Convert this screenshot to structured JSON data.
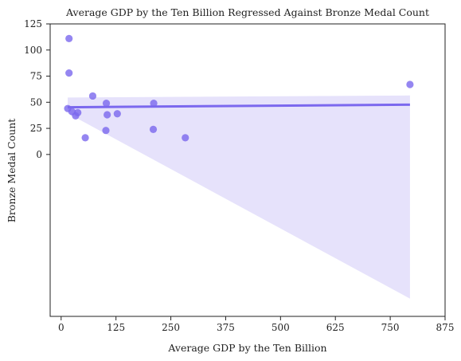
{
  "chart_data": {
    "type": "scatter",
    "title": "Average GDP by the Ten Billion Regressed Against Bronze Medal Count",
    "xlabel": "Average GDP by the Ten Billion",
    "ylabel": "Bronze Medal Count",
    "xlim": [
      -25,
      875
    ],
    "ylim": [
      -155,
      125
    ],
    "xticks": [
      0,
      125,
      250,
      375,
      500,
      625,
      750,
      875
    ],
    "yticks": [
      0,
      25,
      50,
      75,
      100,
      125
    ],
    "grid": false,
    "colors": {
      "points": "#7b68ee",
      "line": "#7b68ee",
      "band": "#e6e2fb"
    },
    "points": [
      {
        "x": 15,
        "y": 44
      },
      {
        "x": 18,
        "y": 111
      },
      {
        "x": 18,
        "y": 78
      },
      {
        "x": 25,
        "y": 41
      },
      {
        "x": 33,
        "y": 37
      },
      {
        "x": 38,
        "y": 40
      },
      {
        "x": 55,
        "y": 16
      },
      {
        "x": 72,
        "y": 56
      },
      {
        "x": 102,
        "y": 23
      },
      {
        "x": 103,
        "y": 49
      },
      {
        "x": 105,
        "y": 38
      },
      {
        "x": 128,
        "y": 39
      },
      {
        "x": 210,
        "y": 24
      },
      {
        "x": 211,
        "y": 49
      },
      {
        "x": 283,
        "y": 16
      },
      {
        "x": 795,
        "y": 67
      }
    ],
    "regression": {
      "x": [
        15,
        795
      ],
      "y": [
        45.2,
        47.7
      ]
    },
    "confidence_band": {
      "x": [
        15,
        795
      ],
      "upper": [
        54.5,
        56.5
      ],
      "lower": [
        39.5,
        -138
      ]
    }
  }
}
